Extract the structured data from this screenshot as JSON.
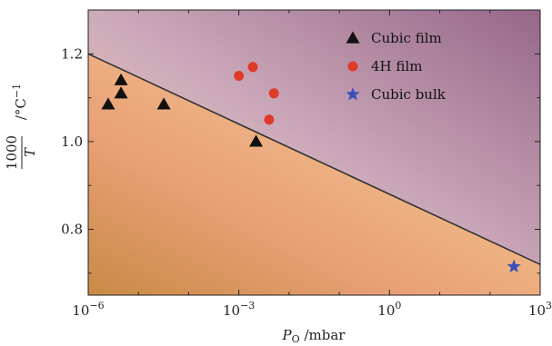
{
  "chart_data": {
    "type": "scatter",
    "x_scale": "log",
    "xlim": [
      1e-06,
      1000
    ],
    "ylim": [
      0.65,
      1.3
    ],
    "grid": false,
    "legend_position": "top-right",
    "xticks": [
      {
        "value": 1e-06,
        "base": "10",
        "exp": "−6"
      },
      {
        "value": 0.001,
        "base": "10",
        "exp": "−3"
      },
      {
        "value": 1,
        "base": "10",
        "exp": "0"
      },
      {
        "value": 1000,
        "base": "10",
        "exp": "3"
      }
    ],
    "yticks": [
      {
        "value": 0.8,
        "label": "0.8"
      },
      {
        "value": 1.0,
        "label": "1.0"
      },
      {
        "value": 1.2,
        "label": "1.2"
      }
    ],
    "xlabel": {
      "symbol": "P",
      "subscript": "O",
      "unit": " /mbar"
    },
    "ylabel": {
      "numerator": "1000",
      "denominator": "T",
      "unit": "/°C",
      "unit_exp": "−1"
    },
    "boundary_line": {
      "x": [
        1e-06,
        1000
      ],
      "y": [
        1.2,
        0.72
      ],
      "color": "#333333"
    },
    "series": [
      {
        "name": "Cubic film",
        "marker": "triangle",
        "color": "#111111",
        "points": [
          {
            "x": 2.5e-06,
            "y": 1.085
          },
          {
            "x": 4.5e-06,
            "y": 1.14
          },
          {
            "x": 4.5e-06,
            "y": 1.11
          },
          {
            "x": 3.2e-05,
            "y": 1.085
          },
          {
            "x": 0.0022,
            "y": 1.0
          }
        ]
      },
      {
        "name": "4H film",
        "marker": "circle",
        "color": "#e03a2a",
        "points": [
          {
            "x": 0.001,
            "y": 1.15
          },
          {
            "x": 0.0019,
            "y": 1.17
          },
          {
            "x": 0.005,
            "y": 1.11
          },
          {
            "x": 0.004,
            "y": 1.05
          }
        ]
      },
      {
        "name": "Cubic bulk",
        "marker": "star",
        "color": "#3a4fb8",
        "points": [
          {
            "x": 300,
            "y": 0.715
          }
        ]
      }
    ]
  }
}
